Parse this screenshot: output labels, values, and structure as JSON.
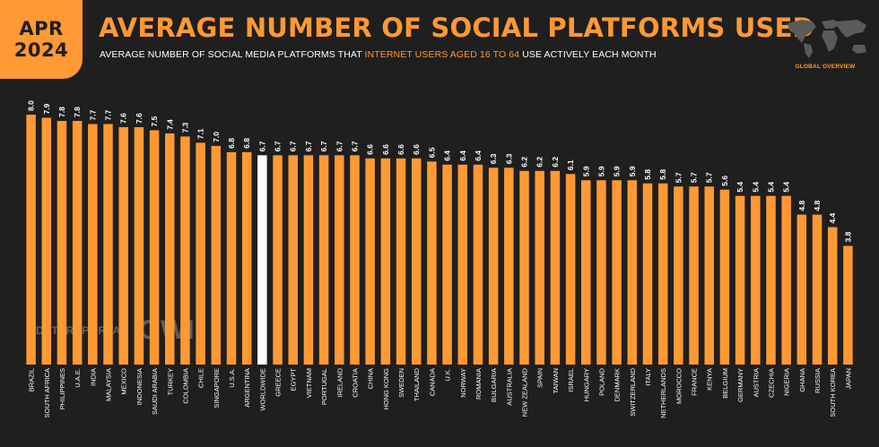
{
  "header": {
    "month": "APR",
    "year": "2024",
    "title": "AVERAGE NUMBER OF SOCIAL PLATFORMS USED",
    "subtitle_pre": "AVERAGE NUMBER OF SOCIAL MEDIA PLATFORMS THAT ",
    "subtitle_highlight": "INTERNET USERS AGED 16 TO 64",
    "subtitle_post": " USE ACTIVELY EACH MONTH",
    "badge": "GLOBAL OVERVIEW"
  },
  "watermark": {
    "left": "DATAREPORTAL",
    "right": "GWI."
  },
  "colors": {
    "accent": "#ff9933",
    "highlight_bar": "#ffffff",
    "background": "#1f1f1f"
  },
  "chart_data": {
    "type": "bar",
    "highlight": "WORLDWIDE",
    "ylim": [
      0,
      8.0
    ],
    "categories": [
      "BRAZIL",
      "SOUTH AFRICA",
      "PHILIPPINES",
      "U.A.E.",
      "INDIA",
      "MALAYSIA",
      "MEXICO",
      "INDONESIA",
      "SAUDI ARABIA",
      "TURKEY",
      "COLOMBIA",
      "CHILE",
      "SINGAPORE",
      "U.S.A.",
      "ARGENTINA",
      "WORLDWIDE",
      "GREECE",
      "EGYPT",
      "VIETNAM",
      "PORTUGAL",
      "IRELAND",
      "CROATIA",
      "CHINA",
      "HONG KONG",
      "SWEDEN",
      "THAILAND",
      "CANADA",
      "U.K.",
      "NORWAY",
      "ROMANIA",
      "BULGARIA",
      "AUSTRALIA",
      "NEW ZEALAND",
      "SPAIN",
      "TAIWAN",
      "ISRAEL",
      "HUNGARY",
      "POLAND",
      "DENMARK",
      "SWITZERLAND",
      "ITALY",
      "NETHERLANDS",
      "MOROCCO",
      "FRANCE",
      "KENYA",
      "BELGIUM",
      "GERMANY",
      "AUSTRIA",
      "CZECHIA",
      "NIGERIA",
      "GHANA",
      "RUSSIA",
      "SOUTH KOREA",
      "JAPAN"
    ],
    "values": [
      8.0,
      7.9,
      7.8,
      7.8,
      7.7,
      7.7,
      7.6,
      7.6,
      7.5,
      7.4,
      7.3,
      7.1,
      7.0,
      6.8,
      6.8,
      6.7,
      6.7,
      6.7,
      6.7,
      6.7,
      6.7,
      6.7,
      6.6,
      6.6,
      6.6,
      6.6,
      6.5,
      6.4,
      6.4,
      6.4,
      6.3,
      6.3,
      6.2,
      6.2,
      6.2,
      6.1,
      5.9,
      5.9,
      5.9,
      5.9,
      5.8,
      5.8,
      5.7,
      5.7,
      5.7,
      5.6,
      5.4,
      5.4,
      5.4,
      5.4,
      4.8,
      4.8,
      4.4,
      3.8
    ],
    "labels": [
      "8.0",
      "7.9",
      "7.8",
      "7.8",
      "7.7",
      "7.7",
      "7.6",
      "7.6",
      "7.5",
      "7.4",
      "7.3",
      "7.1",
      "7.0",
      "6.8",
      "6.8",
      "6.7",
      "6.7",
      "6.7",
      "6.7",
      "6.7",
      "6.7",
      "6.7",
      "6.6",
      "6.6",
      "6.6",
      "6.6",
      "6.5",
      "6.4",
      "6.4",
      "6.4",
      "6.3",
      "6.3",
      "6.2",
      "6.2",
      "6.2",
      "6.1",
      "5.9",
      "5.9",
      "5.9",
      "5.9",
      "5.8",
      "5.8",
      "5.7",
      "5.7",
      "5.7",
      "5.6",
      "5.4",
      "5.4",
      "5.4",
      "5.4",
      "4.8",
      "4.8",
      "4.4",
      "3.8"
    ]
  }
}
